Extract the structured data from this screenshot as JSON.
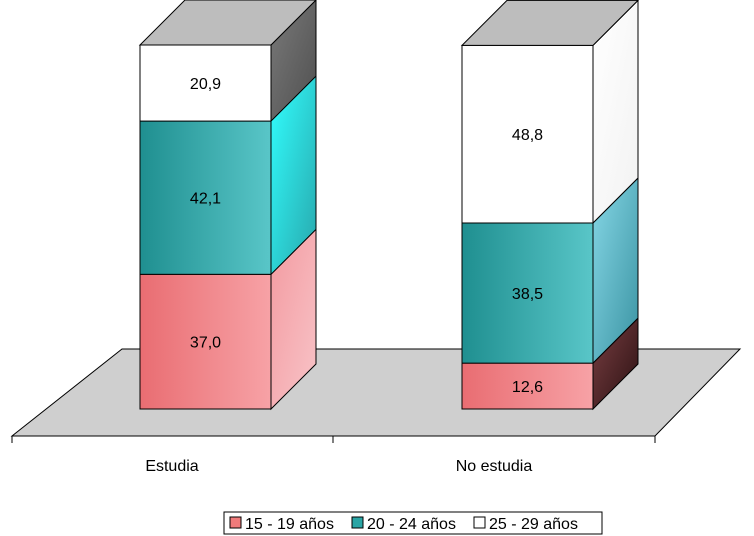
{
  "chart_data": {
    "type": "bar",
    "stacked": true,
    "three_d": true,
    "categories": [
      "Estudia",
      "No estudia"
    ],
    "series": [
      {
        "name": "15 - 19 años",
        "values": [
          37.0,
          12.6
        ],
        "labels": [
          "37,0",
          "12,6"
        ],
        "color": "#f07b7b"
      },
      {
        "name": "20 - 24 años",
        "values": [
          42.1,
          38.5
        ],
        "labels": [
          "42,1",
          "38,5"
        ],
        "color": "#2aa5a5"
      },
      {
        "name": "25 - 29 años",
        "values": [
          20.9,
          48.8
        ],
        "labels": [
          "20,9",
          "48,8"
        ],
        "color": "#ffffff"
      }
    ],
    "title": "",
    "xlabel": "",
    "ylabel": "",
    "ylim": [
      0,
      100
    ],
    "legend_position": "bottom",
    "grid": false
  }
}
